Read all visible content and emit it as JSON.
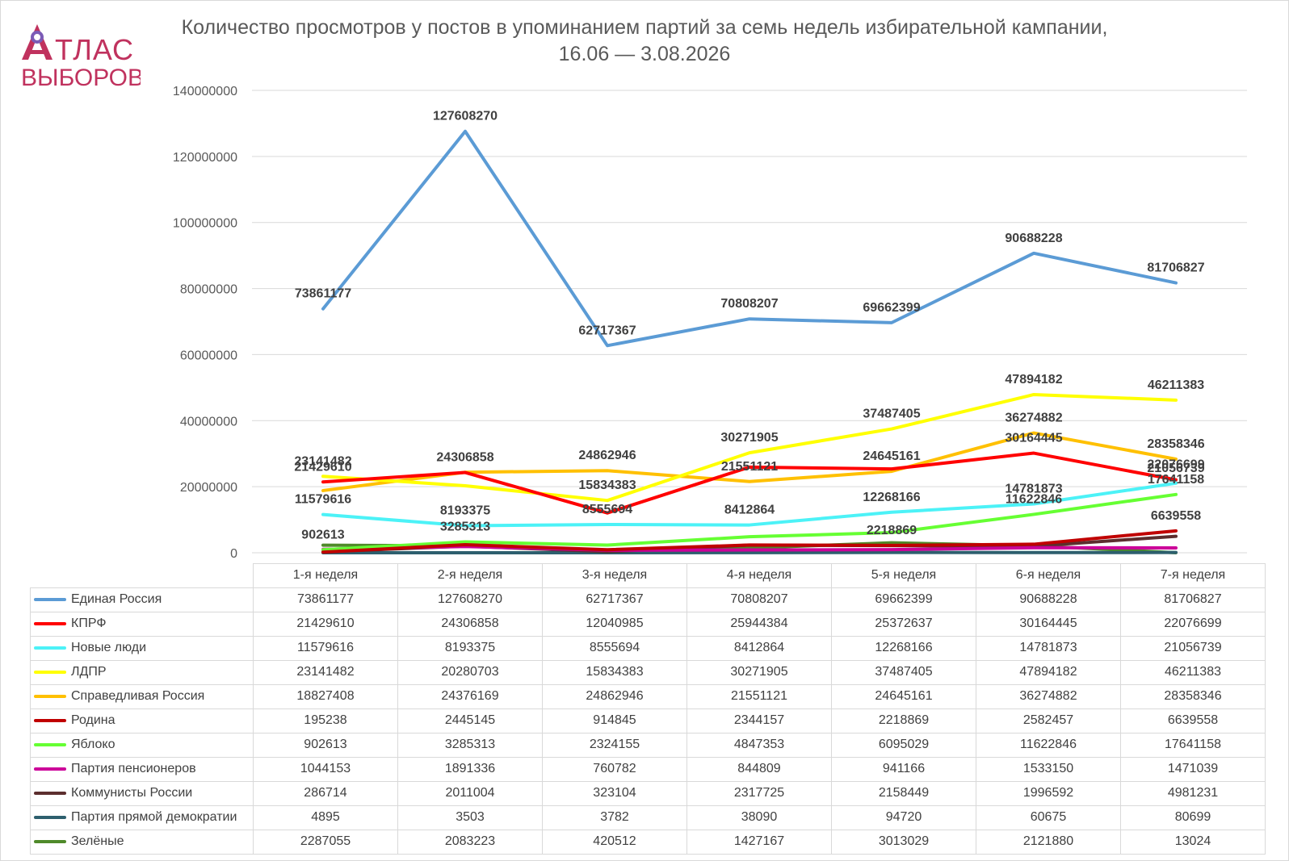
{
  "title_line1": "Количество просмотров у постов в упоминанием партий за семь недель избирательной кампании,",
  "title_line2": "16.06 — 3.08.2026",
  "logo": {
    "line1": "ТЛАС",
    "line2": "ВЫБОРОВ",
    "color": "#c0325e",
    "accent": "#7b5bb6"
  },
  "chart_data": {
    "type": "line",
    "title": "Количество просмотров у постов в упоминанием партий за семь недель избирательной кампании, 16.06 — 3.08.2026",
    "categories": [
      "1-я неделя",
      "2-я неделя",
      "3-я неделя",
      "4-я неделя",
      "5-я неделя",
      "6-я неделя",
      "7-я неделя"
    ],
    "ylim": [
      0,
      140000000
    ],
    "yticks": [
      0,
      20000000,
      40000000,
      60000000,
      80000000,
      100000000,
      120000000,
      140000000
    ],
    "grid": true,
    "legend": "data table below chart",
    "series": [
      {
        "name": "Единая Россия",
        "color": "#5b9bd5",
        "values": [
          73861177,
          127608270,
          62717367,
          70808207,
          69662399,
          90688228,
          81706827
        ]
      },
      {
        "name": "КПРФ",
        "color": "#ff0000",
        "values": [
          21429610,
          24306858,
          12040985,
          25944384,
          25372637,
          30164445,
          22076699
        ]
      },
      {
        "name": "Новые люди",
        "color": "#4cf2f7",
        "values": [
          11579616,
          8193375,
          8555694,
          8412864,
          12268166,
          14781873,
          21056739
        ]
      },
      {
        "name": "ЛДПР",
        "color": "#ffff00",
        "values": [
          23141482,
          20280703,
          15834383,
          30271905,
          37487405,
          47894182,
          46211383
        ]
      },
      {
        "name": "Справедливая Россия",
        "color": "#ffc000",
        "values": [
          18827408,
          24376169,
          24862946,
          21551121,
          24645161,
          36274882,
          28358346
        ]
      },
      {
        "name": "Родина",
        "color": "#c00000",
        "values": [
          195238,
          2445145,
          914845,
          2344157,
          2218869,
          2582457,
          6639558
        ]
      },
      {
        "name": "Яблоко",
        "color": "#66ff33",
        "values": [
          902613,
          3285313,
          2324155,
          4847353,
          6095029,
          11622846,
          17641158
        ]
      },
      {
        "name": "Партия пенсионеров",
        "color": "#cc0099",
        "values": [
          1044153,
          1891336,
          760782,
          844809,
          941166,
          1533150,
          1471039
        ]
      },
      {
        "name": "Коммунисты России",
        "color": "#5c2e2e",
        "values": [
          286714,
          2011004,
          323104,
          2317725,
          2158449,
          1996592,
          4981231
        ]
      },
      {
        "name": "Партия прямой демократии",
        "color": "#2d5f6e",
        "values": [
          4895,
          3503,
          3782,
          38090,
          94720,
          60675,
          80699
        ]
      },
      {
        "name": "Зелёные",
        "color": "#4f8a2a",
        "values": [
          2287055,
          2083223,
          420512,
          1427167,
          3013029,
          2121880,
          13024
        ]
      }
    ],
    "data_labels": [
      {
        "series": "Единая Россия",
        "indices": [
          0,
          1,
          2,
          3,
          4,
          5,
          6
        ]
      },
      {
        "series": "КПРФ",
        "indices": [
          0,
          1,
          5,
          6
        ]
      },
      {
        "series": "Новые люди",
        "indices": [
          0,
          1,
          2,
          3,
          4,
          5,
          6
        ]
      },
      {
        "series": "ЛДПР",
        "indices": [
          0,
          2,
          3,
          4,
          5,
          6
        ]
      },
      {
        "series": "Справедливая Россия",
        "indices": [
          2,
          3,
          4,
          5,
          6
        ]
      },
      {
        "series": "Родина",
        "indices": [
          4,
          6
        ]
      },
      {
        "series": "Яблоко",
        "indices": [
          0,
          1,
          5,
          6
        ]
      }
    ]
  }
}
